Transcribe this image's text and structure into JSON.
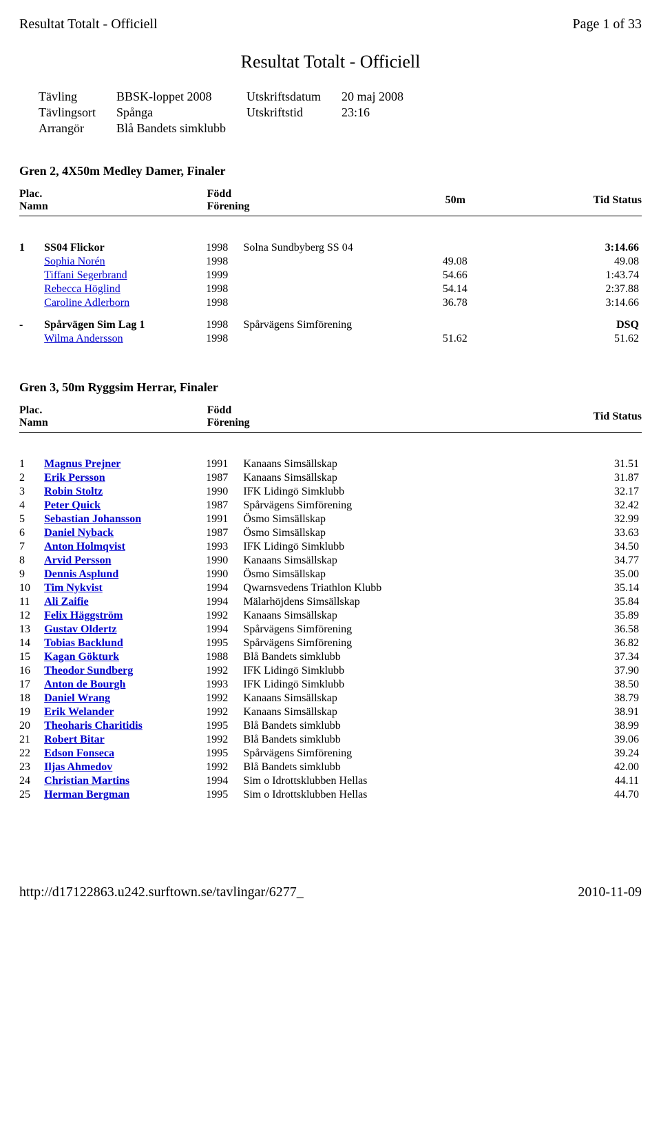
{
  "header": {
    "left": "Resultat Totalt - Officiell",
    "right": "Page 1 of 33"
  },
  "title": "Resultat Totalt - Officiell",
  "meta": [
    {
      "label": "Tävling",
      "value": "BBSK-loppet 2008",
      "label2": "Utskriftsdatum",
      "value2": "20 maj 2008"
    },
    {
      "label": "Tävlingsort",
      "value": "Spånga",
      "label2": "Utskriftstid",
      "value2": "23:16"
    },
    {
      "label": "Arrangör",
      "value": "Blå Bandets simklubb",
      "label2": "",
      "value2": ""
    }
  ],
  "event1": {
    "title": "Gren 2, 4X50m Medley Damer, Finaler",
    "cols": {
      "plac": "Plac.",
      "name": "Namn",
      "year": "Född",
      "club": "Förening",
      "split": "50m",
      "time": "Tid",
      "status": "Status"
    },
    "teams": [
      {
        "plac": "1",
        "team": "SS04 Flickor",
        "year": "1998",
        "club": "Solna Sundbyberg SS 04",
        "time": "3:14.66",
        "members": [
          {
            "name": "Sophia Norén",
            "year": "1998",
            "split": "49.08",
            "time": "49.08"
          },
          {
            "name": "Tiffani Segerbrand",
            "year": "1999",
            "split": "54.66",
            "time": "1:43.74"
          },
          {
            "name": "Rebecca Höglind",
            "year": "1998",
            "split": "54.14",
            "time": "2:37.88"
          },
          {
            "name": "Caroline Adlerborn",
            "year": "1998",
            "split": "36.78",
            "time": "3:14.66"
          }
        ]
      },
      {
        "plac": "-",
        "team": "Spårvägen Sim Lag 1",
        "year": "1998",
        "club": "Spårvägens Simförening",
        "time": "DSQ",
        "members": [
          {
            "name": "Wilma Andersson",
            "year": "1998",
            "split": "51.62",
            "time": "51.62"
          }
        ]
      }
    ]
  },
  "event2": {
    "title": "Gren 3, 50m Ryggsim Herrar, Finaler",
    "cols": {
      "plac": "Plac.",
      "name": "Namn",
      "year": "Född",
      "club": "Förening",
      "time": "Tid",
      "status": "Status"
    },
    "rows": [
      {
        "plac": "1",
        "name": "Magnus Prejner",
        "year": "1991",
        "club": "Kanaans Simsällskap",
        "time": "31.51"
      },
      {
        "plac": "2",
        "name": "Erik Persson",
        "year": "1987",
        "club": "Kanaans Simsällskap",
        "time": "31.87"
      },
      {
        "plac": "3",
        "name": "Robin Stoltz",
        "year": "1990",
        "club": "IFK Lidingö Simklubb",
        "time": "32.17"
      },
      {
        "plac": "4",
        "name": "Peter Quick",
        "year": "1987",
        "club": "Spårvägens Simförening",
        "time": "32.42"
      },
      {
        "plac": "5",
        "name": "Sebastian Johansson",
        "year": "1991",
        "club": "Ösmo Simsällskap",
        "time": "32.99"
      },
      {
        "plac": "6",
        "name": "Daniel Nyback",
        "year": "1987",
        "club": "Ösmo Simsällskap",
        "time": "33.63"
      },
      {
        "plac": "7",
        "name": "Anton Holmqvist",
        "year": "1993",
        "club": "IFK Lidingö Simklubb",
        "time": "34.50"
      },
      {
        "plac": "8",
        "name": "Arvid Persson",
        "year": "1990",
        "club": "Kanaans Simsällskap",
        "time": "34.77"
      },
      {
        "plac": "9",
        "name": "Dennis Asplund",
        "year": "1990",
        "club": "Ösmo Simsällskap",
        "time": "35.00"
      },
      {
        "plac": "10",
        "name": "Tim Nykvist",
        "year": "1994",
        "club": "Qwarnsvedens Triathlon Klubb",
        "time": "35.14"
      },
      {
        "plac": "11",
        "name": "Ali Zaifie",
        "year": "1994",
        "club": "Mälarhöjdens Simsällskap",
        "time": "35.84"
      },
      {
        "plac": "12",
        "name": "Felix Häggström",
        "year": "1992",
        "club": "Kanaans Simsällskap",
        "time": "35.89"
      },
      {
        "plac": "13",
        "name": "Gustav Oldertz",
        "year": "1994",
        "club": "Spårvägens Simförening",
        "time": "36.58"
      },
      {
        "plac": "14",
        "name": "Tobias Backlund",
        "year": "1995",
        "club": "Spårvägens Simförening",
        "time": "36.82"
      },
      {
        "plac": "15",
        "name": "Kagan Gökturk",
        "year": "1988",
        "club": "Blå Bandets simklubb",
        "time": "37.34"
      },
      {
        "plac": "16",
        "name": "Theodor Sundberg",
        "year": "1992",
        "club": "IFK Lidingö Simklubb",
        "time": "37.90"
      },
      {
        "plac": "17",
        "name": "Anton de Bourgh",
        "year": "1993",
        "club": "IFK Lidingö Simklubb",
        "time": "38.50"
      },
      {
        "plac": "18",
        "name": "Daniel Wrang",
        "year": "1992",
        "club": "Kanaans Simsällskap",
        "time": "38.79"
      },
      {
        "plac": "19",
        "name": "Erik Welander",
        "year": "1992",
        "club": "Kanaans Simsällskap",
        "time": "38.91"
      },
      {
        "plac": "20",
        "name": "Theoharis Charitidis",
        "year": "1995",
        "club": "Blå Bandets simklubb",
        "time": "38.99"
      },
      {
        "plac": "21",
        "name": "Robert Bitar",
        "year": "1992",
        "club": "Blå Bandets simklubb",
        "time": "39.06"
      },
      {
        "plac": "22",
        "name": "Edson Fonseca",
        "year": "1995",
        "club": "Spårvägens Simförening",
        "time": "39.24"
      },
      {
        "plac": "23",
        "name": "Iljas Ahmedov",
        "year": "1992",
        "club": "Blå Bandets simklubb",
        "time": "42.00"
      },
      {
        "plac": "24",
        "name": "Christian Martins",
        "year": "1994",
        "club": "Sim o Idrottsklubben Hellas",
        "time": "44.11"
      },
      {
        "plac": "25",
        "name": "Herman Bergman",
        "year": "1995",
        "club": "Sim o Idrottsklubben Hellas",
        "time": "44.70"
      }
    ]
  },
  "footer": {
    "left": "http://d17122863.u242.surftown.se/tavlingar/6277_",
    "right": "2010-11-09"
  }
}
